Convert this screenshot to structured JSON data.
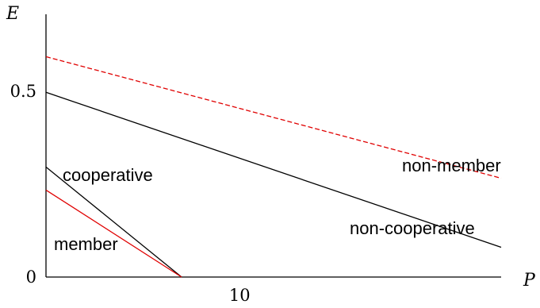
{
  "chart_data": {
    "type": "line",
    "title": "",
    "xlabel": "P",
    "ylabel": "E",
    "xlim": [
      0,
      23.5
    ],
    "ylim": [
      0,
      0.707
    ],
    "grid": false,
    "x_ticks": [
      {
        "value": 10,
        "label": "10"
      }
    ],
    "y_ticks": [
      {
        "value": 0,
        "label": "0"
      },
      {
        "value": 0.5,
        "label": "0.5"
      }
    ],
    "colors": {
      "black": "#000000",
      "red": "#e00000"
    },
    "series": [
      {
        "name": "non-member",
        "style": "dashed",
        "color": "red",
        "x": [
          0,
          23.5
        ],
        "y": [
          0.593,
          0.266
        ]
      },
      {
        "name": "non-cooperative",
        "style": "solid",
        "color": "black",
        "x": [
          0,
          23.5
        ],
        "y": [
          0.497,
          0.08
        ]
      },
      {
        "name": "cooperative",
        "style": "solid",
        "color": "black",
        "x": [
          0,
          7
        ],
        "y": [
          0.296,
          0
        ]
      },
      {
        "name": "member",
        "style": "solid",
        "color": "red",
        "x": [
          0,
          7
        ],
        "y": [
          0.234,
          0
        ]
      }
    ]
  }
}
